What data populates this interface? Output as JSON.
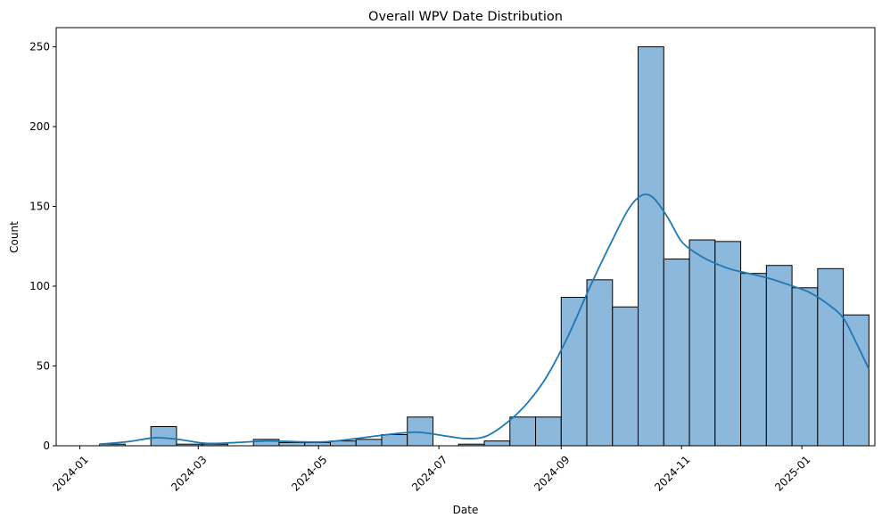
{
  "chart_data": {
    "type": "bar",
    "title": "Overall WPV Date Distribution",
    "xlabel": "Date",
    "ylabel": "Count",
    "ylim": [
      0,
      262
    ],
    "xlim": [
      "2023-12-20",
      "2025-02-07"
    ],
    "grid": false,
    "bar_color": "#8bb8db",
    "bar_edge_color": "#000000",
    "kde_color": "#1f77b4",
    "yticks": [
      0,
      50,
      100,
      150,
      200,
      250
    ],
    "xticks": [
      "2024-01",
      "2024-03",
      "2024-05",
      "2024-07",
      "2024-09",
      "2024-11",
      "2025-01"
    ],
    "bins": [
      {
        "start": "2024-01-11",
        "end": "2024-01-24",
        "value": 1
      },
      {
        "start": "2024-01-24",
        "end": "2024-02-06",
        "value": 0
      },
      {
        "start": "2024-02-06",
        "end": "2024-02-19",
        "value": 12
      },
      {
        "start": "2024-02-19",
        "end": "2024-03-03",
        "value": 1
      },
      {
        "start": "2024-03-03",
        "end": "2024-03-16",
        "value": 1
      },
      {
        "start": "2024-03-16",
        "end": "2024-03-29",
        "value": 0
      },
      {
        "start": "2024-03-29",
        "end": "2024-04-11",
        "value": 4
      },
      {
        "start": "2024-04-11",
        "end": "2024-04-24",
        "value": 2
      },
      {
        "start": "2024-04-24",
        "end": "2024-05-07",
        "value": 2
      },
      {
        "start": "2024-05-07",
        "end": "2024-05-20",
        "value": 3
      },
      {
        "start": "2024-05-20",
        "end": "2024-06-02",
        "value": 4
      },
      {
        "start": "2024-06-02",
        "end": "2024-06-15",
        "value": 7
      },
      {
        "start": "2024-06-15",
        "end": "2024-06-28",
        "value": 18
      },
      {
        "start": "2024-06-28",
        "end": "2024-07-11",
        "value": 0
      },
      {
        "start": "2024-07-11",
        "end": "2024-07-24",
        "value": 1
      },
      {
        "start": "2024-07-24",
        "end": "2024-08-06",
        "value": 3
      },
      {
        "start": "2024-08-06",
        "end": "2024-08-19",
        "value": 18
      },
      {
        "start": "2024-08-19",
        "end": "2024-09-01",
        "value": 18
      },
      {
        "start": "2024-09-01",
        "end": "2024-09-14",
        "value": 93
      },
      {
        "start": "2024-09-14",
        "end": "2024-09-27",
        "value": 104
      },
      {
        "start": "2024-09-27",
        "end": "2024-10-10",
        "value": 87
      },
      {
        "start": "2024-10-10",
        "end": "2024-10-23",
        "value": 250
      },
      {
        "start": "2024-10-23",
        "end": "2024-11-05",
        "value": 117
      },
      {
        "start": "2024-11-05",
        "end": "2024-11-18",
        "value": 129
      },
      {
        "start": "2024-11-18",
        "end": "2024-12-01",
        "value": 128
      },
      {
        "start": "2024-12-01",
        "end": "2024-12-14",
        "value": 108
      },
      {
        "start": "2024-12-14",
        "end": "2024-12-27",
        "value": 113
      },
      {
        "start": "2024-12-27",
        "end": "2025-01-09",
        "value": 99
      },
      {
        "start": "2025-01-09",
        "end": "2025-01-22",
        "value": 111
      },
      {
        "start": "2025-01-22",
        "end": "2025-02-04",
        "value": 82
      }
    ],
    "kde": {
      "x": [
        "2024-01-11",
        "2024-01-25",
        "2024-02-08",
        "2024-02-20",
        "2024-03-05",
        "2024-03-20",
        "2024-04-05",
        "2024-04-20",
        "2024-05-05",
        "2024-05-20",
        "2024-06-05",
        "2024-06-20",
        "2024-07-05",
        "2024-07-15",
        "2024-07-25",
        "2024-08-05",
        "2024-08-15",
        "2024-08-25",
        "2024-09-05",
        "2024-09-15",
        "2024-09-25",
        "2024-10-05",
        "2024-10-12",
        "2024-10-18",
        "2024-10-25",
        "2024-11-01",
        "2024-11-08",
        "2024-11-15",
        "2024-11-25",
        "2024-12-05",
        "2024-12-15",
        "2024-12-25",
        "2025-01-05",
        "2025-01-15",
        "2025-01-22",
        "2025-01-28",
        "2025-02-04"
      ],
      "y": [
        1,
        2.5,
        5,
        4,
        1.5,
        2,
        3,
        2.5,
        2.5,
        4.5,
        7,
        8.5,
        6,
        4.5,
        6,
        15,
        27,
        44,
        70,
        98,
        124,
        148,
        157,
        155,
        143,
        128,
        121,
        116,
        111,
        108,
        105,
        101,
        96,
        88,
        80,
        66,
        48
      ]
    }
  }
}
